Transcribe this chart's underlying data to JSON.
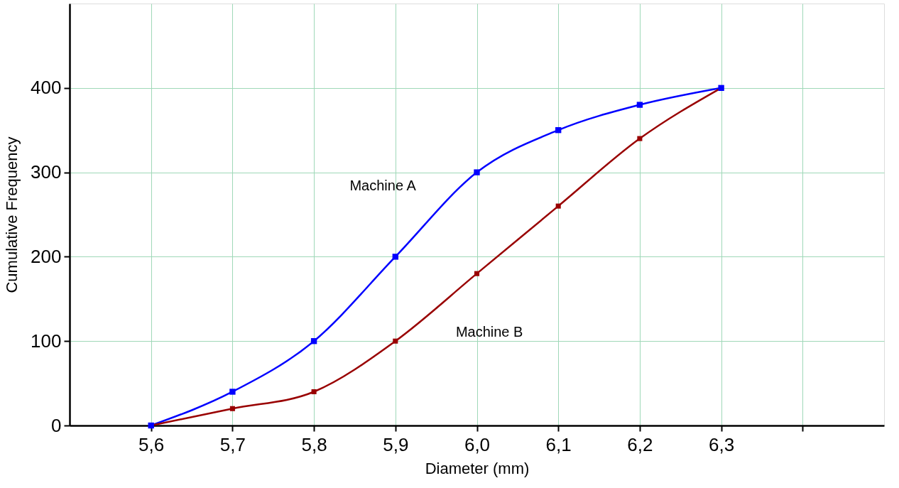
{
  "chart_data": {
    "type": "line",
    "xlabel": "Diameter (mm)",
    "ylabel": "Cumulative Frequency",
    "x": [
      5.6,
      5.7,
      5.8,
      5.9,
      6.0,
      6.1,
      6.2,
      6.3
    ],
    "series": [
      {
        "name": "Machine A",
        "color": "#0000ff",
        "values": [
          0,
          40,
          100,
          200,
          300,
          350,
          380,
          400
        ]
      },
      {
        "name": "Machine B",
        "color": "#990000",
        "values": [
          0,
          20,
          40,
          100,
          180,
          260,
          340,
          400
        ]
      }
    ],
    "xlim": [
      5.5,
      6.5
    ],
    "xticks": [
      {
        "value": 5.6,
        "label": "5,6"
      },
      {
        "value": 5.7,
        "label": "5,7"
      },
      {
        "value": 5.8,
        "label": "5,8"
      },
      {
        "value": 5.9,
        "label": "5,9"
      },
      {
        "value": 6.0,
        "label": "6,0"
      },
      {
        "value": 6.1,
        "label": "6,1"
      },
      {
        "value": 6.2,
        "label": "6,2"
      },
      {
        "value": 6.3,
        "label": "6,3"
      },
      {
        "value": 6.4,
        "label": null
      }
    ],
    "ylim": [
      0,
      500
    ],
    "yticks": [
      0,
      100,
      200,
      300,
      400
    ],
    "grid": true,
    "marker": "square",
    "line_style": "solid"
  }
}
